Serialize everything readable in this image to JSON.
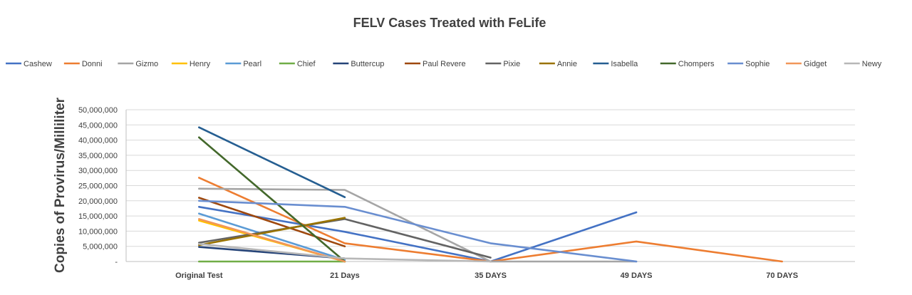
{
  "chart_data": {
    "type": "line",
    "title": "FELV Cases Treated with FeLife",
    "xlabel": "",
    "ylabel": "Copies of Provirus/Milliliter",
    "categories": [
      "Original Test",
      "21 Days",
      "35 DAYS",
      "49 DAYS",
      "70 DAYS"
    ],
    "ylim": [
      0,
      50000000
    ],
    "yticks": [
      0,
      5000000,
      10000000,
      15000000,
      20000000,
      25000000,
      30000000,
      35000000,
      40000000,
      45000000,
      50000000
    ],
    "ytick_labels": [
      "-",
      "5,000,000",
      "10,000,000",
      "15,000,000",
      "20,000,000",
      "25,000,000",
      "30,000,000",
      "35,000,000",
      "40,000,000",
      "45,000,000",
      "50,000,000"
    ],
    "grid": true,
    "legend_position": "top",
    "series": [
      {
        "name": "Cashew",
        "color": "#4472c4",
        "values": [
          18000000,
          9800000,
          0,
          16200000,
          null
        ]
      },
      {
        "name": "Donni",
        "color": "#ed7d31",
        "values": [
          27600000,
          6000000,
          0,
          6600000,
          0
        ]
      },
      {
        "name": "Gizmo",
        "color": "#a5a5a5",
        "values": [
          24000000,
          23600000,
          0,
          0,
          null
        ]
      },
      {
        "name": "Henry",
        "color": "#ffc000",
        "values": [
          13500000,
          0,
          null,
          null,
          null
        ]
      },
      {
        "name": "Pearl",
        "color": "#5b9bd5",
        "values": [
          15800000,
          500000,
          null,
          null,
          null
        ]
      },
      {
        "name": "Chief",
        "color": "#70ad47",
        "values": [
          0,
          0,
          null,
          null,
          null
        ]
      },
      {
        "name": "Buttercup",
        "color": "#264478",
        "values": [
          4800000,
          1000000,
          null,
          null,
          null
        ]
      },
      {
        "name": "Paul Revere",
        "color": "#9e480e",
        "values": [
          21000000,
          5000000,
          null,
          null,
          null
        ]
      },
      {
        "name": "Pixie",
        "color": "#636363",
        "values": [
          6200000,
          14000000,
          1300000,
          null,
          null
        ]
      },
      {
        "name": "Annie",
        "color": "#997300",
        "values": [
          5400000,
          14400000,
          null,
          null,
          null
        ]
      },
      {
        "name": "Isabella",
        "color": "#255e91",
        "values": [
          44200000,
          21200000,
          null,
          null,
          null
        ]
      },
      {
        "name": "Chompers",
        "color": "#43682b",
        "values": [
          40900000,
          0,
          null,
          null,
          null
        ]
      },
      {
        "name": "Sophie",
        "color": "#698ed0",
        "values": [
          20000000,
          18000000,
          6000000,
          0,
          null
        ]
      },
      {
        "name": "Gidget",
        "color": "#f1975a",
        "values": [
          14000000,
          0,
          null,
          null,
          null
        ]
      },
      {
        "name": "Newy",
        "color": "#b7b7b7",
        "values": [
          5800000,
          1000000,
          0,
          null,
          null
        ]
      }
    ]
  }
}
